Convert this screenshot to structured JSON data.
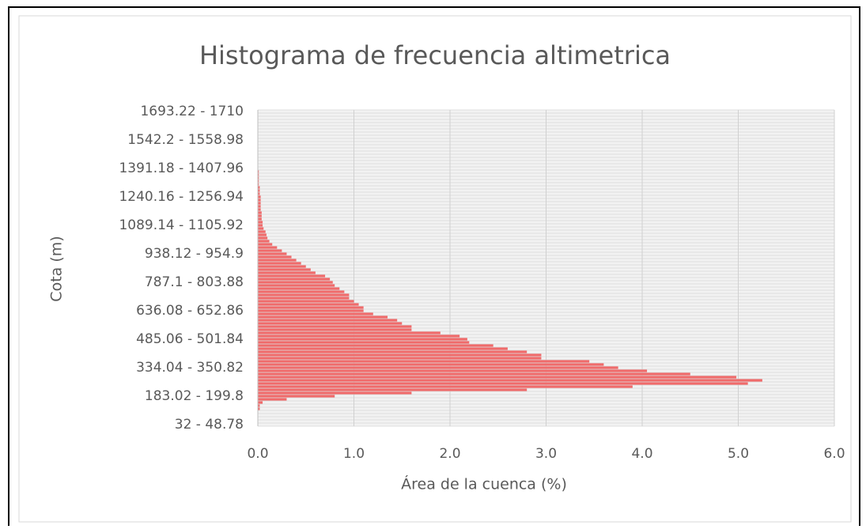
{
  "chart_data": {
    "type": "hbar",
    "title": "Histograma de frecuencia altimetrica",
    "xlabel": "Área de la cuenca (%)",
    "ylabel": "Cota (m)",
    "color": "#f06b6b",
    "categories": [
      "32 - 48.78",
      null,
      null,
      null,
      null,
      null,
      null,
      null,
      null,
      "183.02 - 199.8",
      null,
      null,
      null,
      null,
      null,
      null,
      null,
      null,
      "334.04 - 350.82",
      null,
      null,
      null,
      null,
      null,
      null,
      null,
      null,
      "485.06 - 501.84",
      null,
      null,
      null,
      null,
      null,
      null,
      null,
      null,
      "636.08 - 652.86",
      null,
      null,
      null,
      null,
      null,
      null,
      null,
      null,
      "787.1 - 803.88",
      null,
      null,
      null,
      null,
      null,
      null,
      null,
      null,
      "938.12 - 954.9",
      null,
      null,
      null,
      null,
      null,
      null,
      null,
      null,
      "1089.14 - 1105.92",
      null,
      null,
      null,
      null,
      null,
      null,
      null,
      null,
      "1240.16 - 1256.94",
      null,
      null,
      null,
      null,
      null,
      null,
      null,
      null,
      "1391.18 - 1407.96",
      null,
      null,
      null,
      null,
      null,
      null,
      null,
      null,
      "1542.2 - 1558.98",
      null,
      null,
      null,
      null,
      null,
      null,
      null,
      null,
      "1693.22 - 1710"
    ],
    "values": [
      0,
      0,
      0,
      0,
      0,
      0.02,
      0.02,
      0.05,
      0.3,
      0.8,
      1.6,
      2.8,
      3.9,
      5.1,
      5.25,
      4.98,
      4.5,
      4.05,
      3.75,
      3.6,
      3.45,
      2.95,
      2.95,
      2.8,
      2.6,
      2.45,
      2.2,
      2.18,
      2.1,
      1.9,
      1.6,
      1.6,
      1.5,
      1.45,
      1.35,
      1.2,
      1.1,
      1.1,
      1.05,
      1.0,
      0.95,
      0.95,
      0.9,
      0.85,
      0.8,
      0.78,
      0.75,
      0.7,
      0.6,
      0.55,
      0.5,
      0.45,
      0.4,
      0.35,
      0.3,
      0.25,
      0.2,
      0.15,
      0.12,
      0.1,
      0.09,
      0.08,
      0.06,
      0.05,
      0.05,
      0.04,
      0.04,
      0.04,
      0.03,
      0.03,
      0.03,
      0.03,
      0.03,
      0.02,
      0.02,
      0.02,
      0.01,
      0.01,
      0.01,
      0.01,
      0.01,
      0,
      0,
      0,
      0,
      0,
      0,
      0,
      0,
      0,
      0,
      0,
      0,
      0,
      0,
      0,
      0,
      0,
      0,
      0
    ],
    "xlim": [
      0,
      6
    ],
    "xticks": [
      {
        "value": 0,
        "label": "0.0"
      },
      {
        "value": 1,
        "label": "1.0"
      },
      {
        "value": 2,
        "label": "2.0"
      },
      {
        "value": 3,
        "label": "3.0"
      },
      {
        "value": 4,
        "label": "4.0"
      },
      {
        "value": 5,
        "label": "5.0"
      },
      {
        "value": 6,
        "label": "6.0"
      }
    ],
    "grid": true
  }
}
